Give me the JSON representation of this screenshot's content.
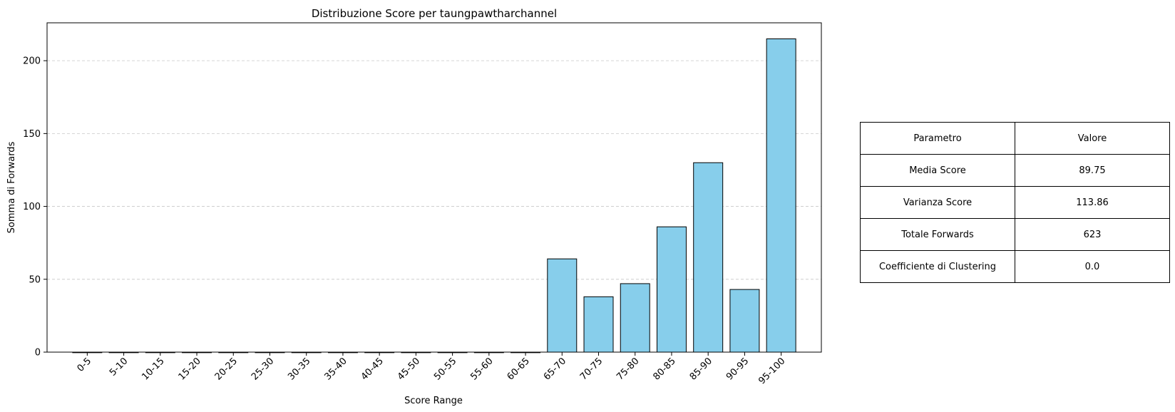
{
  "chart_data": {
    "type": "bar",
    "title": "Distribuzione Score per taungpawtharchannel",
    "xlabel": "Score Range",
    "ylabel": "Somma di Forwards",
    "categories": [
      "0-5",
      "5-10",
      "10-15",
      "15-20",
      "20-25",
      "25-30",
      "30-35",
      "35-40",
      "40-45",
      "45-50",
      "50-55",
      "55-60",
      "60-65",
      "65-70",
      "70-75",
      "75-80",
      "80-85",
      "85-90",
      "90-95",
      "95-100"
    ],
    "values": [
      0,
      0,
      0,
      0,
      0,
      0,
      0,
      0,
      0,
      0,
      0,
      0,
      0,
      64,
      38,
      47,
      86,
      130,
      43,
      215
    ],
    "ylim": [
      0,
      226
    ],
    "yticks": [
      0,
      50,
      100,
      150,
      200
    ],
    "grid": "y-dashed",
    "bar_color": "#87ceeb",
    "edge_color": "#000000"
  },
  "table": {
    "headers": [
      "Parametro",
      "Valore"
    ],
    "rows": [
      [
        "Media Score",
        "89.75"
      ],
      [
        "Varianza Score",
        "113.86"
      ],
      [
        "Totale Forwards",
        "623"
      ],
      [
        "Coefficiente di Clustering",
        "0.0"
      ]
    ]
  }
}
